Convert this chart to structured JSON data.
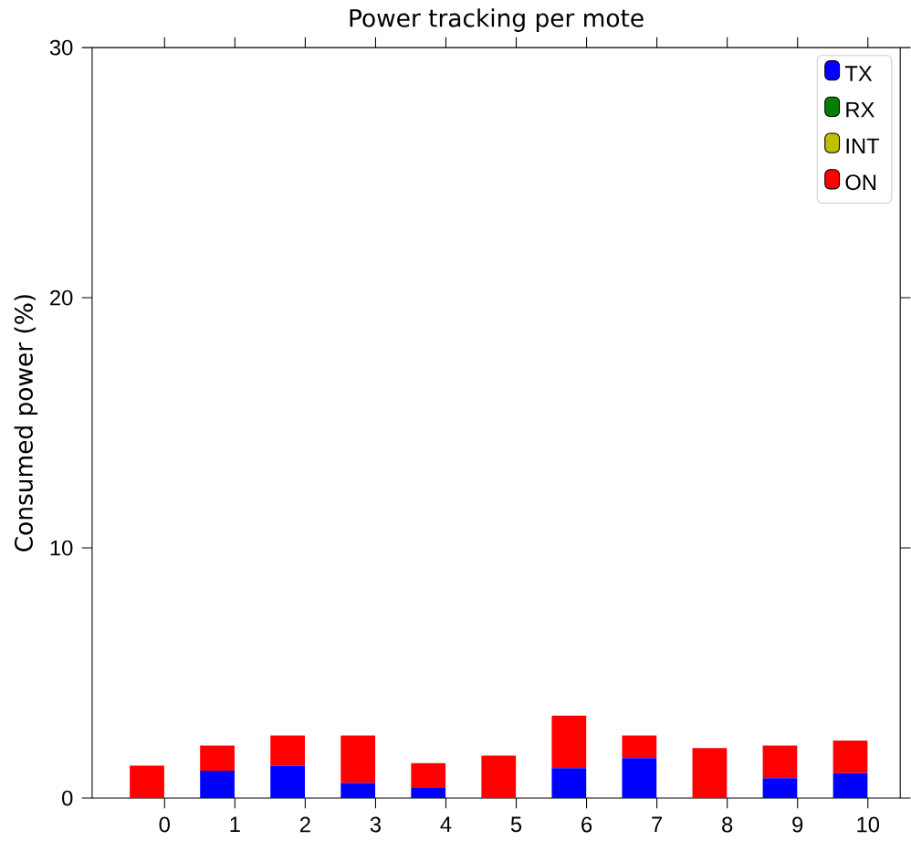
{
  "chart_data": {
    "type": "bar",
    "title": "Power tracking per mote",
    "ylabel": "Consumed power (%)",
    "categories": [
      "0",
      "1",
      "2",
      "3",
      "4",
      "5",
      "6",
      "7",
      "8",
      "9",
      "10"
    ],
    "stacked": true,
    "ylim": [
      0,
      30
    ],
    "yticks": [
      0,
      10,
      20,
      30
    ],
    "legend": "top right",
    "grid": false,
    "series": [
      {
        "name": "TX",
        "color": "#0000ff",
        "values": [
          0,
          1.1,
          1.3,
          0.6,
          0.4,
          0,
          1.2,
          1.6,
          0,
          0.8,
          1.0
        ]
      },
      {
        "name": "RX",
        "color": "#008000",
        "values": [
          0,
          0,
          0,
          0,
          0,
          0,
          0,
          0,
          0,
          0,
          0
        ]
      },
      {
        "name": "INT",
        "color": "#bfbf00",
        "values": [
          0,
          0,
          0,
          0,
          0,
          0,
          0,
          0,
          0,
          0,
          0
        ]
      },
      {
        "name": "ON",
        "color": "#ff0000",
        "values": [
          1.3,
          1.0,
          1.2,
          1.9,
          1.0,
          1.7,
          2.1,
          0.9,
          2.0,
          1.3,
          1.3
        ]
      }
    ]
  }
}
